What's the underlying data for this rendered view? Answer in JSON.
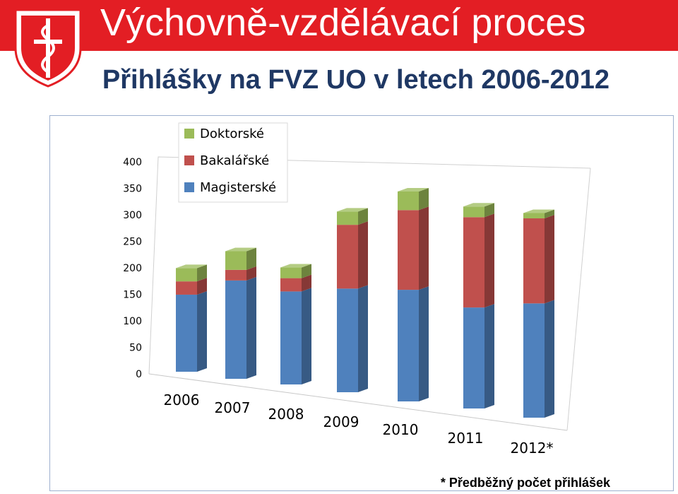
{
  "header": {
    "title": "Výchovně-vzdělávací proces",
    "accent_color": "#e31e24"
  },
  "logo": {
    "icon": "shield-caduceus-logo"
  },
  "footnote": "* Předběžný počet přihlášek",
  "chart_data": {
    "type": "bar",
    "stacked": true,
    "three_d": true,
    "title": "Přihlášky na FVZ UO v letech 2006-2012",
    "categories": [
      "2006",
      "2007",
      "2008",
      "2009",
      "2010",
      "2011",
      "2012*"
    ],
    "series": [
      {
        "name": "Magisterské",
        "color": "#4f81bd",
        "values": [
          145,
          185,
          175,
          195,
          210,
          190,
          215
        ]
      },
      {
        "name": "Bakalářské",
        "color": "#c0504d",
        "values": [
          25,
          20,
          25,
          120,
          150,
          170,
          160
        ]
      },
      {
        "name": "Doktorské",
        "color": "#9bbb59",
        "values": [
          25,
          35,
          20,
          25,
          35,
          20,
          10
        ]
      }
    ],
    "y_ticks": [
      "0",
      "50",
      "100",
      "150",
      "200",
      "250",
      "300",
      "350",
      "400"
    ],
    "ylim": [
      0,
      400
    ],
    "legend_position": "top-left",
    "grid": false
  }
}
